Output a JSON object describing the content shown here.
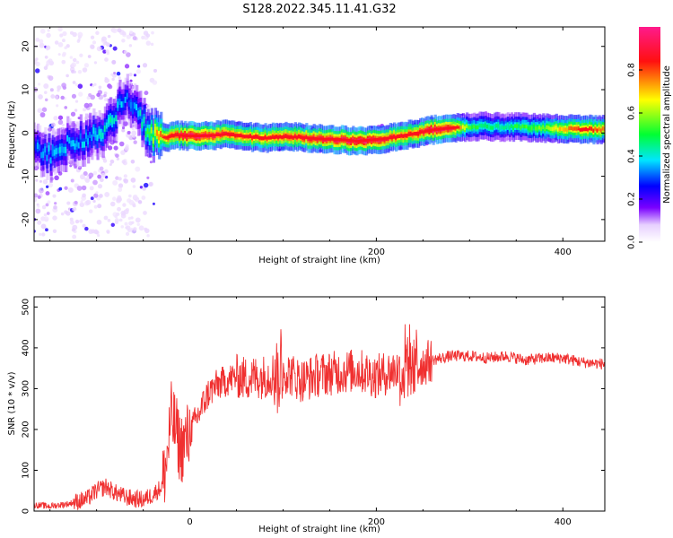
{
  "title": "S128.2022.345.11.41.G32",
  "chart_data": [
    {
      "type": "heatmap",
      "title": "",
      "xlabel": "Height of straight line (km)",
      "ylabel": "Frequency (Hz)",
      "xlim": [
        -167,
        445
      ],
      "ylim": [
        -25,
        24.5
      ],
      "xticks": [
        0,
        200,
        400
      ],
      "yticks": [
        -20,
        -10,
        0,
        10,
        20
      ],
      "colorbar": {
        "label": "Normalized spectral amplitude",
        "ticks": [
          0.0,
          0.2,
          0.4,
          0.6,
          0.8
        ],
        "range": [
          0,
          1
        ],
        "colors": [
          "#ffffff",
          "#6a00ff",
          "#0000ff",
          "#00e5ff",
          "#00ff00",
          "#ffff00",
          "#ff0000",
          "#ff1a8c"
        ]
      },
      "ridge": {
        "x": [
          -165,
          -150,
          -135,
          -120,
          -105,
          -95,
          -85,
          -75,
          -65,
          -55,
          -45,
          -35,
          -25,
          -15,
          0,
          20,
          40,
          60,
          80,
          100,
          120,
          140,
          160,
          180,
          200,
          220,
          240,
          260,
          280,
          300,
          320,
          340,
          360,
          380,
          400,
          420,
          445
        ],
        "y": [
          -4,
          -5,
          -3,
          -2,
          -1,
          0,
          3,
          6,
          8,
          4,
          0,
          -1,
          -1,
          -0.5,
          -0.7,
          -0.6,
          -0.3,
          -0.8,
          -1.2,
          -0.9,
          -1.0,
          -1.4,
          -1.5,
          -1.9,
          -1.5,
          -1.0,
          -0.2,
          0.7,
          1.2,
          1.5,
          1.5,
          1.4,
          1.3,
          1.1,
          0.9,
          0.8,
          0.8
        ],
        "amplitude": [
          0.3,
          0.35,
          0.35,
          0.35,
          0.35,
          0.4,
          0.4,
          0.35,
          0.3,
          0.35,
          0.5,
          0.7,
          0.8,
          0.85,
          0.95,
          0.9,
          0.85,
          0.8,
          0.8,
          0.85,
          0.85,
          0.9,
          0.9,
          0.95,
          0.9,
          0.85,
          0.8,
          0.95,
          0.9,
          0.5,
          0.45,
          0.45,
          0.5,
          0.55,
          0.7,
          0.8,
          0.75
        ]
      }
    },
    {
      "type": "line",
      "title": "",
      "xlabel": "Height of straight line (km)",
      "ylabel": "SNR (10 * v/v)",
      "xlim": [
        -167,
        445
      ],
      "ylim": [
        0,
        525
      ],
      "xticks": [
        0,
        200,
        400
      ],
      "yticks": [
        0,
        100,
        200,
        300,
        400,
        500
      ],
      "color": "#f03030",
      "series": [
        {
          "x": [
            -167,
            -150,
            -130,
            -110,
            -100,
            -90,
            -80,
            -70,
            -60,
            -50,
            -40,
            -30,
            -25,
            -20,
            -15,
            -10,
            0,
            10,
            20,
            30,
            40,
            50,
            60,
            80,
            100,
            120,
            140,
            160,
            180,
            200,
            220,
            240,
            260,
            280,
            300,
            320,
            340,
            360,
            380,
            400,
            420,
            445
          ],
          "values": [
            15,
            12,
            18,
            30,
            50,
            60,
            45,
            35,
            30,
            28,
            40,
            60,
            120,
            230,
            200,
            150,
            190,
            240,
            290,
            310,
            320,
            330,
            325,
            330,
            345,
            320,
            335,
            340,
            345,
            330,
            345,
            350,
            370,
            380,
            380,
            375,
            380,
            370,
            375,
            375,
            365,
            360
          ]
        }
      ]
    }
  ]
}
